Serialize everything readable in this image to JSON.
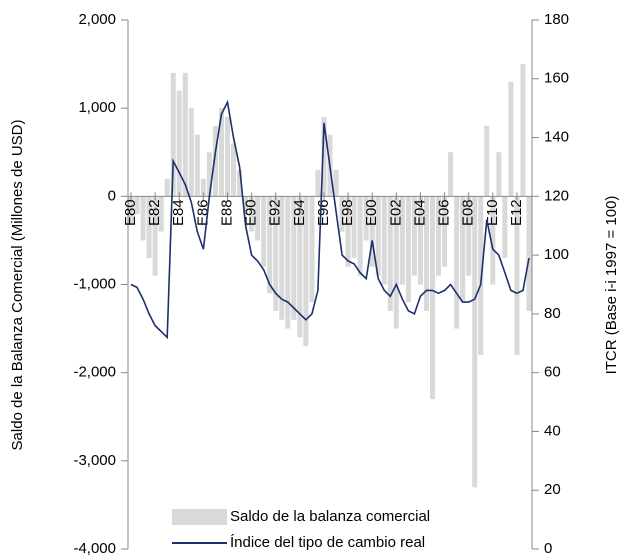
{
  "chart_data": {
    "type": "bar-line",
    "categories": [
      "E80",
      null,
      null,
      null,
      "E82",
      null,
      null,
      null,
      "E84",
      null,
      null,
      null,
      "E86",
      null,
      null,
      null,
      "E88",
      null,
      null,
      null,
      "E90",
      null,
      null,
      null,
      "E92",
      null,
      null,
      null,
      "E94",
      null,
      null,
      null,
      "E96",
      null,
      null,
      null,
      "E98",
      null,
      null,
      null,
      "E00",
      null,
      null,
      null,
      "E02",
      null,
      null,
      null,
      "E04",
      null,
      null,
      null,
      "E06",
      null,
      null,
      null,
      "E08",
      null,
      null,
      null,
      "E10",
      null,
      null,
      null,
      "E12",
      null,
      null
    ],
    "series": [
      {
        "name": "Saldo de la balanza comercial",
        "type": "bar",
        "color": "#d9d9d9",
        "values": [
          -300,
          -200,
          -500,
          -700,
          -900,
          -400,
          200,
          1400,
          1200,
          1400,
          1000,
          700,
          200,
          500,
          800,
          1000,
          900,
          600,
          300,
          -200,
          -400,
          -500,
          -800,
          -1100,
          -1300,
          -1400,
          -1500,
          -1400,
          -1600,
          -1700,
          -1200,
          300,
          900,
          700,
          300,
          -400,
          -800,
          -700,
          -900,
          -500,
          -800,
          -900,
          -1000,
          -1300,
          -1500,
          -1000,
          -1200,
          -900,
          -1000,
          -1300,
          -2300,
          -900,
          -800,
          500,
          -1500,
          -1200,
          -900,
          -3300,
          -1800,
          800,
          -1000,
          500,
          -700,
          1300,
          -1800,
          1500,
          -1300
        ]
      },
      {
        "name": "Índice del tipo de cambio real",
        "type": "line",
        "axis": "y2",
        "color": "#1f2f6e",
        "values": [
          90,
          89,
          85,
          80,
          76,
          74,
          72,
          132,
          128,
          124,
          118,
          108,
          102,
          120,
          135,
          148,
          152,
          140,
          130,
          110,
          100,
          98,
          95,
          90,
          87,
          85,
          84,
          82,
          80,
          78,
          80,
          88,
          145,
          130,
          115,
          100,
          98,
          97,
          94,
          92,
          105,
          92,
          88,
          86,
          90,
          85,
          81,
          80,
          86,
          88,
          88,
          87,
          88,
          90,
          87,
          84,
          84,
          85,
          90,
          112,
          102,
          100,
          94,
          88,
          87,
          88,
          99
        ]
      }
    ],
    "y_label": "Saldo de la Balanza Comercial (Millones de USD)",
    "y2_label": "ITCR (Base i-i 1997 = 100)",
    "ylim": [
      -4000,
      2000
    ],
    "yticks": [
      {
        "value": -4000,
        "label": "-4,000"
      },
      {
        "value": -3000,
        "label": "-3,000"
      },
      {
        "value": -2000,
        "label": "-2,000"
      },
      {
        "value": -1000,
        "label": "-1,000"
      },
      0,
      {
        "value": 1000,
        "label": "1,000"
      },
      {
        "value": 2000,
        "label": "2,000"
      }
    ],
    "y2lim": [
      0,
      180
    ],
    "y2ticks": [
      0,
      20,
      40,
      60,
      80,
      100,
      120,
      140,
      160,
      180
    ],
    "legend": "bottom"
  }
}
